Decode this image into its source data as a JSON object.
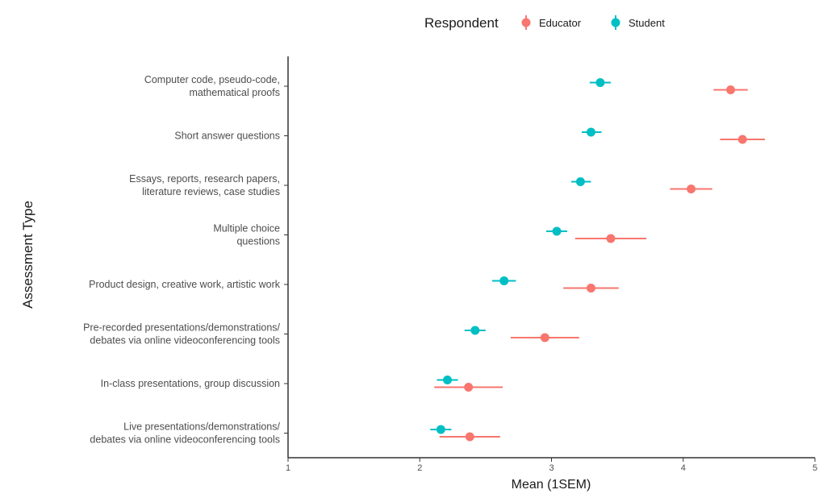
{
  "chart_data": {
    "type": "scatter",
    "subtype": "dot-with-error-bars",
    "title": "",
    "xlabel": "Mean (1SEM)",
    "ylabel": "Assessment Type",
    "xlim": [
      1,
      5
    ],
    "xticks": [
      "1",
      "2",
      "3",
      "4",
      "5"
    ],
    "grid": false,
    "legend": {
      "title": "Respondent",
      "placement": "top",
      "entries": [
        "Educator",
        "Student"
      ]
    },
    "categories": [
      {
        "lines": [
          "Computer code, pseudo-code,",
          "mathematical proofs"
        ]
      },
      {
        "lines": [
          "Short answer questions"
        ]
      },
      {
        "lines": [
          "Essays, reports, research papers,",
          "literature reviews, case studies"
        ]
      },
      {
        "lines": [
          "Multiple choice",
          "questions"
        ]
      },
      {
        "lines": [
          "Product design, creative work, artistic work"
        ]
      },
      {
        "lines": [
          "Pre-recorded presentations/demonstrations/",
          "debates via online videoconferencing tools"
        ]
      },
      {
        "lines": [
          "In-class presentations, group discussion"
        ]
      },
      {
        "lines": [
          "Live presentations/demonstrations/",
          "debates via online videoconferencing tools"
        ]
      }
    ],
    "series": [
      {
        "name": "Educator",
        "color": "#F8766D",
        "mean": [
          4.36,
          4.45,
          4.06,
          3.45,
          3.3,
          2.95,
          2.37,
          2.38
        ],
        "lower": [
          4.23,
          4.28,
          3.9,
          3.18,
          3.09,
          2.69,
          2.11,
          2.15
        ],
        "upper": [
          4.49,
          4.62,
          4.22,
          3.72,
          3.51,
          3.21,
          2.63,
          2.61
        ]
      },
      {
        "name": "Student",
        "color": "#00BFC4",
        "mean": [
          3.37,
          3.3,
          3.22,
          3.04,
          2.64,
          2.42,
          2.21,
          2.16
        ],
        "lower": [
          3.29,
          3.23,
          3.15,
          2.96,
          2.55,
          2.34,
          2.13,
          2.08
        ],
        "upper": [
          3.45,
          3.38,
          3.3,
          3.12,
          2.73,
          2.5,
          2.29,
          2.24
        ]
      }
    ]
  }
}
